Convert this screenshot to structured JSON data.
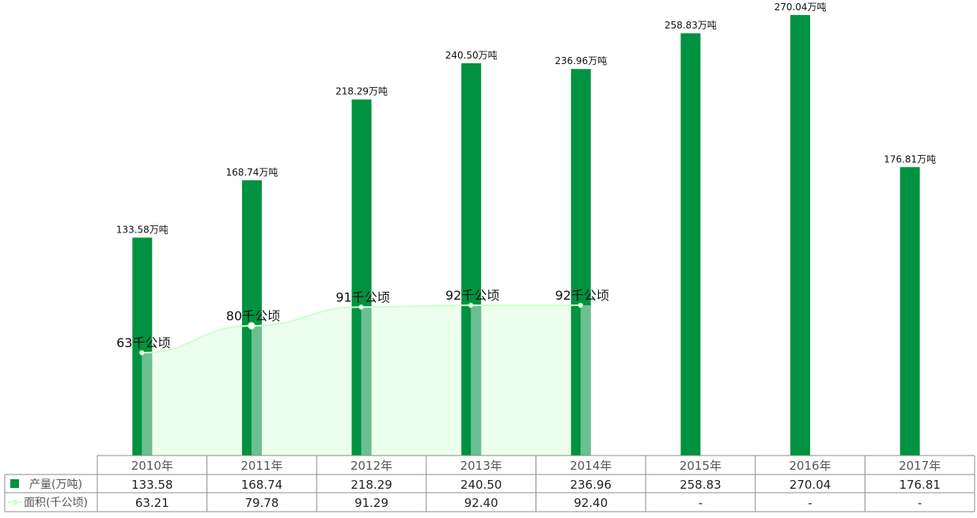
{
  "chart_data": {
    "type": "bar",
    "categories": [
      "2010年",
      "2011年",
      "2012年",
      "2013年",
      "2014年",
      "2015年",
      "2016年",
      "2017年"
    ],
    "series": [
      {
        "name": "产量(万吨)",
        "type": "bar",
        "values": [
          133.58,
          168.74,
          218.29,
          240.5,
          236.96,
          258.83,
          270.04,
          176.81
        ],
        "labels": [
          "133.58万吨",
          "168.74万吨",
          "218.29万吨",
          "240.50万吨",
          "236.96万吨",
          "258.83万吨",
          "270.04万吨",
          "176.81万吨"
        ],
        "table_values": [
          "133.58",
          "168.74",
          "218.29",
          "240.50",
          "236.96",
          "258.83",
          "270.04",
          "176.81"
        ],
        "color": "#009240"
      },
      {
        "name": "面积(千公顷)",
        "type": "area",
        "values": [
          63.21,
          79.78,
          91.29,
          92.4,
          92.4,
          null,
          null,
          null
        ],
        "labels": [
          "63千公顷",
          "80千公顷",
          "91千公顷",
          "92千公顷",
          "92千公顷",
          "",
          "",
          ""
        ],
        "table_values": [
          "63.21",
          "79.78",
          "91.29",
          "92.40",
          "92.40",
          "-",
          "-",
          "-"
        ],
        "color": "#ccffcc"
      }
    ],
    "data_table": true,
    "grid": false,
    "legend": "bottom-left"
  }
}
